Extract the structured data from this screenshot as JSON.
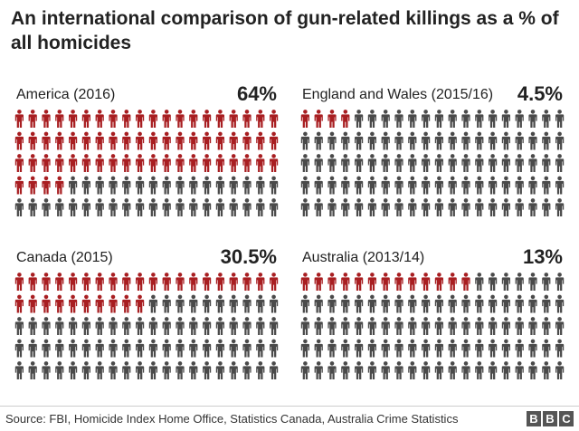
{
  "title": "An international comparison of gun-related killings as a % of all homicides",
  "source": "Source: FBI, Homicide Index Home Office, Statistics Canada, Australia Crime Statistics",
  "logo_letters": [
    "B",
    "B",
    "C"
  ],
  "colors": {
    "highlight": "#a81e21",
    "other": "#4a4a4a"
  },
  "icon": "person-icon",
  "chart_data": {
    "type": "table",
    "grid": {
      "columns": 20,
      "rows": 5,
      "total": 100
    },
    "panels": [
      {
        "label": "America (2016)",
        "value_label": "64%",
        "value": 64,
        "highlighted_figures": 64
      },
      {
        "label": "England and Wales (2015/16)",
        "value_label": "4.5%",
        "value": 4.5,
        "highlighted_figures": 4.5
      },
      {
        "label": "Canada (2015)",
        "value_label": "30.5%",
        "value": 30.5,
        "highlighted_figures": 30.5
      },
      {
        "label": "Australia (2013/14)",
        "value_label": "13%",
        "value": 13,
        "highlighted_figures": 13
      }
    ]
  }
}
